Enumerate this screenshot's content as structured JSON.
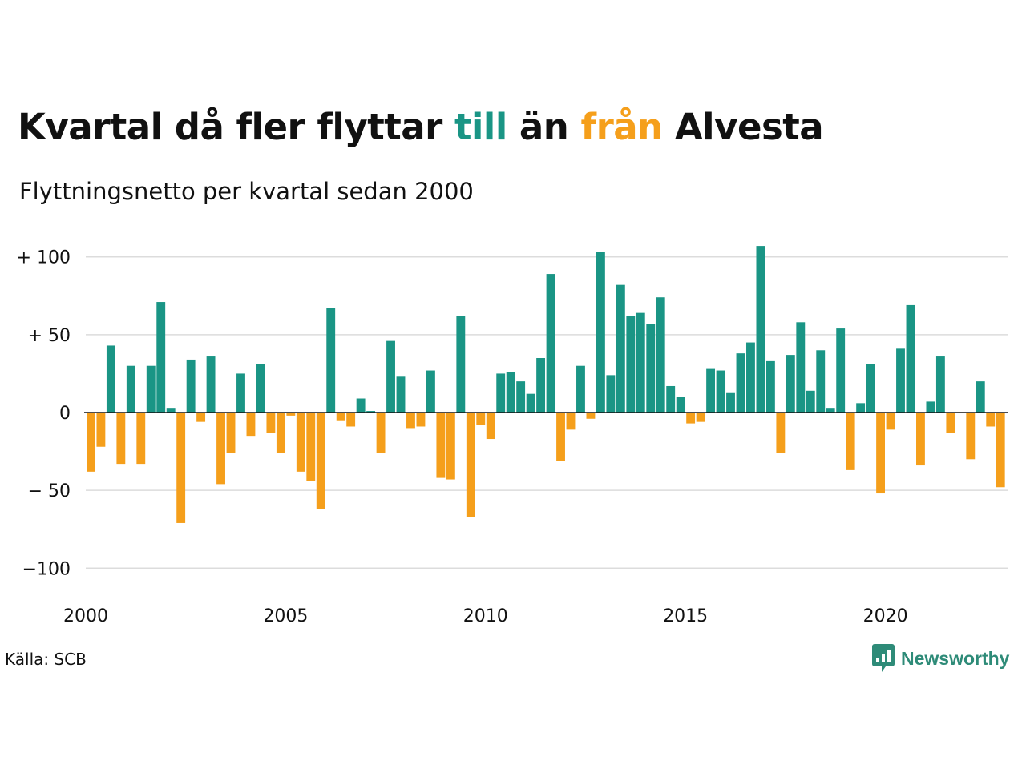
{
  "title": {
    "part1": "Kvartal då fler flyttar ",
    "part_to": "till",
    "part2": " än ",
    "part_from": "från",
    "part3": " Alvesta"
  },
  "subtitle": "Flyttningsnetto per kvartal sedan 2000",
  "source": "Källa: SCB",
  "brand": {
    "name": "Newsworthy",
    "icon": "newsworthy-logo-icon"
  },
  "colors": {
    "positive": "#1a9585",
    "negative": "#f59f1b",
    "grid": "#dcdcdc",
    "axis": "#111111"
  },
  "chart_data": {
    "type": "bar",
    "title": "Kvartal då fler flyttar till än från Alvesta",
    "subtitle": "Flyttningsnetto per kvartal sedan 2000",
    "xlabel": "",
    "ylabel": "",
    "x_start": 2000,
    "periods_per_year": 4,
    "xlim": [
      2000,
      2023
    ],
    "ylim": [
      -110,
      110
    ],
    "grid": true,
    "legend": "none",
    "x_ticks": [
      2000,
      2005,
      2010,
      2015,
      2020
    ],
    "y_ticks": [
      {
        "value": 100,
        "label": "+ 100"
      },
      {
        "value": 50,
        "label": "+  50"
      },
      {
        "value": 0,
        "label": "0"
      },
      {
        "value": -50,
        "label": "− 50"
      },
      {
        "value": -100,
        "label": "−100"
      }
    ],
    "values": [
      -38,
      -22,
      43,
      -33,
      30,
      -33,
      30,
      71,
      3,
      -71,
      34,
      -6,
      36,
      -46,
      -26,
      25,
      -15,
      31,
      -13,
      -26,
      -2,
      -38,
      -44,
      -62,
      67,
      -5,
      -9,
      9,
      1,
      -26,
      46,
      23,
      -10,
      -9,
      27,
      -42,
      -43,
      62,
      -67,
      -8,
      -17,
      25,
      26,
      20,
      12,
      35,
      89,
      -31,
      -11,
      30,
      -4,
      103,
      24,
      82,
      62,
      64,
      57,
      74,
      17,
      10,
      -7,
      -6,
      28,
      27,
      13,
      38,
      45,
      107,
      33,
      -26,
      37,
      58,
      14,
      40,
      3,
      54,
      -37,
      6,
      31,
      -52,
      -11,
      41,
      69,
      -34,
      7,
      36,
      -13,
      0,
      -30,
      20,
      -9,
      -48
    ]
  }
}
